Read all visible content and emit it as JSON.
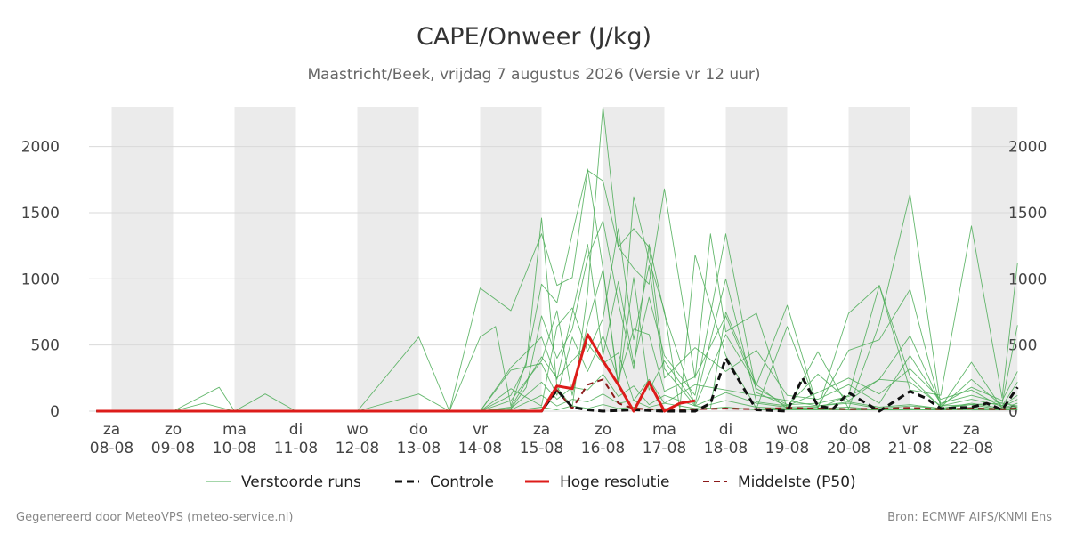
{
  "chart_data": {
    "type": "line",
    "title": "CAPE/Onweer (J/kg)",
    "subtitle": "Maastricht/Beek, vrijdag  7 augustus 2026 (Versie vr 12 uur)",
    "ylim": [
      0,
      2300
    ],
    "yticks": [
      0,
      500,
      1000,
      1500,
      2000
    ],
    "xlim": [
      0,
      14.75
    ],
    "xlabel": "",
    "ylabel": "",
    "grid": true,
    "legend_position": "bottom",
    "x_axis": {
      "day_names": [
        "za",
        "zo",
        "ma",
        "di",
        "wo",
        "do",
        "vr",
        "za",
        "zo",
        "ma",
        "di",
        "wo",
        "do",
        "vr",
        "za"
      ],
      "dates": [
        "08-08",
        "09-08",
        "10-08",
        "11-08",
        "12-08",
        "13-08",
        "14-08",
        "15-08",
        "16-08",
        "17-08",
        "18-08",
        "19-08",
        "20-08",
        "21-08",
        "22-08"
      ]
    },
    "weekend_shading": [
      [
        0,
        1
      ],
      [
        2,
        3
      ],
      [
        4,
        5
      ],
      [
        6,
        7
      ],
      [
        8,
        9
      ],
      [
        10,
        11
      ],
      [
        12,
        13
      ],
      [
        14,
        14.75
      ]
    ],
    "colors": {
      "ensemble": "#4aac55",
      "control": "#111111",
      "high_res": "#dd1c1a",
      "median": "#8b1a1a",
      "grid": "#d9d9d9",
      "shade": "#ebebeb"
    },
    "legend": {
      "ensemble": "Verstoorde runs",
      "control": "Controle",
      "high_res": "Hoge resolutie",
      "median": "Middelste (P50)"
    },
    "series": [
      {
        "name": "Controle",
        "x": [
          -0.25,
          0.5,
          1,
          2,
          3,
          4,
          5,
          6,
          6.5,
          7,
          7.25,
          7.5,
          7.75,
          8,
          8.5,
          9,
          9.5,
          9.75,
          10,
          10.5,
          11,
          11.25,
          11.5,
          11.75,
          12,
          12.5,
          13,
          13.25,
          13.5,
          14,
          14.25,
          14.5,
          14.75
        ],
        "values": [
          0,
          0,
          0,
          0,
          0,
          0,
          0,
          0,
          0,
          0,
          160,
          30,
          10,
          0,
          10,
          0,
          0,
          60,
          400,
          10,
          0,
          250,
          40,
          20,
          140,
          0,
          150,
          100,
          20,
          30,
          60,
          10,
          180
        ]
      },
      {
        "name": "Hoge resolutie",
        "x": [
          -0.25,
          0.5,
          1,
          2,
          3,
          4,
          5,
          6,
          6.5,
          7,
          7.25,
          7.5,
          7.75,
          8,
          8.25,
          8.5,
          8.75,
          9,
          9.25,
          9.5
        ],
        "values": [
          0,
          0,
          0,
          0,
          0,
          0,
          0,
          0,
          0,
          0,
          190,
          170,
          580,
          380,
          200,
          0,
          220,
          0,
          60,
          80
        ]
      },
      {
        "name": "Middelste (P50)",
        "x": [
          -0.25,
          0.5,
          1,
          2,
          3,
          4,
          5,
          6,
          6.5,
          7,
          7.25,
          7.5,
          7.75,
          8,
          8.25,
          8.5,
          8.75,
          9,
          9.5,
          10,
          10.5,
          11,
          11.5,
          12,
          12.5,
          13,
          13.5,
          14,
          14.5,
          14.75
        ],
        "values": [
          0,
          0,
          0,
          0,
          0,
          0,
          0,
          0,
          0,
          0,
          160,
          20,
          200,
          240,
          60,
          20,
          15,
          10,
          15,
          20,
          15,
          25,
          20,
          15,
          20,
          25,
          15,
          20,
          15,
          20
        ]
      }
    ],
    "ensemble_runs": [
      {
        "x": [
          -0.25,
          1,
          2,
          3,
          4,
          5,
          6,
          6.5,
          6.75,
          7,
          7.25,
          7.5,
          7.75,
          8,
          8.25,
          8.5,
          8.75,
          9,
          9.25,
          9.5,
          9.75,
          10,
          10.5,
          11,
          11.5,
          12,
          12.5,
          13,
          13.5,
          14,
          14.5,
          14.75
        ],
        "values": [
          0,
          0,
          0,
          0,
          0,
          0,
          0,
          120,
          350,
          1460,
          180,
          30,
          900,
          2300,
          1240,
          1380,
          1240,
          320,
          180,
          40,
          20,
          750,
          200,
          800,
          20,
          120,
          950,
          160,
          120,
          1400,
          100,
          1120
        ]
      },
      {
        "x": [
          -0.25,
          1,
          1.75,
          2,
          3,
          4,
          5,
          5.5,
          6,
          6.5,
          7,
          7.25,
          7.5,
          7.75,
          8,
          8.25,
          8.5,
          8.75,
          9,
          9.5,
          9.75,
          10,
          10.5,
          11,
          11.5,
          12,
          12.5,
          13,
          13.5,
          14,
          14.5,
          14.75
        ],
        "values": [
          0,
          0,
          180,
          0,
          0,
          0,
          560,
          0,
          930,
          760,
          1340,
          950,
          1010,
          1820,
          1740,
          1240,
          1080,
          960,
          1680,
          250,
          1340,
          600,
          740,
          20,
          450,
          20,
          660,
          1640,
          40,
          50,
          60,
          650
        ]
      },
      {
        "x": [
          -0.25,
          1,
          2,
          3,
          4,
          5,
          5.5,
          6,
          6.25,
          6.5,
          6.75,
          7,
          7.25,
          7.5,
          7.75,
          8,
          8.25,
          8.5,
          8.75,
          9,
          9.25,
          9.5,
          10,
          10.5,
          11,
          11.5,
          12,
          12.5,
          13,
          13.5,
          14,
          14.5,
          14.75
        ],
        "values": [
          0,
          0,
          0,
          0,
          0,
          130,
          0,
          560,
          640,
          40,
          370,
          960,
          820,
          1340,
          1830,
          1080,
          200,
          1620,
          1140,
          760,
          20,
          1180,
          420,
          20,
          640,
          20,
          740,
          950,
          260,
          30,
          370,
          20,
          60
        ]
      },
      {
        "x": [
          -0.25,
          1,
          2,
          3,
          4,
          5,
          6,
          6.5,
          6.75,
          7,
          7.25,
          7.5,
          7.75,
          8,
          8.25,
          8.5,
          8.75,
          9,
          9.5,
          10,
          10.5,
          11,
          11.5,
          12,
          12.5,
          13,
          13.5,
          14,
          14.5,
          14.75
        ],
        "values": [
          0,
          0,
          0,
          0,
          0,
          0,
          0,
          20,
          180,
          720,
          400,
          620,
          1160,
          1440,
          820,
          320,
          1260,
          740,
          40,
          580,
          200,
          20,
          30,
          460,
          540,
          920,
          30,
          240,
          40,
          220
        ]
      },
      {
        "x": [
          -0.25,
          1,
          1.5,
          2,
          2.5,
          3,
          4,
          5,
          6,
          6.5,
          7,
          7.25,
          7.5,
          7.75,
          8,
          8.25,
          8.5,
          8.75,
          9,
          9.5,
          10,
          10.5,
          11,
          11.5,
          12,
          12.5,
          13,
          13.5,
          14,
          14.5,
          14.75
        ],
        "values": [
          0,
          0,
          60,
          0,
          130,
          0,
          0,
          0,
          0,
          330,
          560,
          240,
          740,
          1260,
          420,
          980,
          360,
          860,
          420,
          120,
          1340,
          140,
          40,
          280,
          80,
          240,
          570,
          50,
          180,
          80,
          300
        ]
      },
      {
        "x": [
          -0.25,
          1,
          2,
          3,
          4,
          5,
          6,
          6.5,
          7,
          7.25,
          7.5,
          7.75,
          8,
          8.25,
          8.5,
          8.75,
          9,
          9.5,
          10,
          10.5,
          11,
          11.5,
          12,
          12.5,
          13,
          13.5,
          14,
          14.5,
          14.75
        ],
        "values": [
          0,
          0,
          0,
          0,
          0,
          0,
          0,
          80,
          380,
          760,
          120,
          660,
          1070,
          180,
          1010,
          160,
          380,
          60,
          1000,
          70,
          40,
          140,
          250,
          130,
          320,
          90,
          160,
          30,
          90
        ]
      },
      {
        "x": [
          -0.25,
          1,
          2,
          3,
          4,
          5,
          6,
          6.5,
          7,
          7.25,
          7.5,
          7.75,
          8,
          8.25,
          8.5,
          8.75,
          9,
          9.5,
          10,
          10.5,
          11,
          11.5,
          12,
          12.5,
          13,
          13.5,
          14,
          14.5,
          14.75
        ],
        "values": [
          0,
          0,
          0,
          0,
          0,
          0,
          0,
          170,
          40,
          640,
          780,
          450,
          700,
          1380,
          540,
          1100,
          250,
          480,
          300,
          460,
          120,
          90,
          200,
          60,
          420,
          60,
          120,
          60,
          40
        ]
      },
      {
        "x": [
          -0.25,
          1,
          2,
          3,
          4,
          5,
          6,
          6.5,
          7,
          7.25,
          7.5,
          7.75,
          8,
          8.25,
          8.5,
          8.75,
          9,
          9.5,
          10,
          10.5,
          11,
          11.5,
          12,
          12.5,
          13,
          13.5,
          14,
          14.5,
          14.75
        ],
        "values": [
          0,
          0,
          0,
          0,
          0,
          0,
          0,
          310,
          360,
          120,
          560,
          300,
          570,
          240,
          620,
          580,
          150,
          260,
          720,
          170,
          50,
          60,
          110,
          240,
          220,
          40,
          90,
          40,
          120
        ]
      },
      {
        "x": [
          -0.25,
          1,
          2,
          3,
          4,
          5,
          6,
          6.5,
          7,
          7.25,
          7.5,
          7.75,
          8,
          8.25,
          8.5,
          8.75,
          9,
          9.5,
          10,
          10.5,
          11,
          11.5,
          12,
          12.5,
          13,
          13.5,
          14,
          14.5,
          14.75
        ],
        "values": [
          0,
          0,
          0,
          0,
          0,
          0,
          0,
          30,
          410,
          250,
          380,
          510,
          360,
          440,
          80,
          240,
          60,
          200,
          160,
          120,
          80,
          40,
          70,
          30,
          50,
          20,
          60,
          20,
          40
        ]
      },
      {
        "x": [
          -0.25,
          1,
          2,
          3,
          4,
          5,
          6,
          6.5,
          7,
          7.25,
          7.5,
          7.75,
          8,
          8.25,
          8.5,
          8.75,
          9,
          9.5,
          10,
          10.5,
          11,
          11.5,
          12,
          12.5,
          13,
          13.5,
          14,
          14.5,
          14.75
        ],
        "values": [
          0,
          0,
          0,
          0,
          0,
          0,
          0,
          20,
          220,
          90,
          180,
          160,
          280,
          110,
          190,
          50,
          120,
          40,
          140,
          60,
          30,
          40,
          60,
          20,
          40,
          20,
          50,
          10,
          30
        ]
      },
      {
        "x": [
          -0.25,
          1,
          2,
          3,
          4,
          5,
          6,
          6.5,
          7,
          7.25,
          7.5,
          7.75,
          8,
          8.25,
          8.5,
          8.75,
          9,
          9.5,
          10,
          10.5,
          11,
          11.5,
          12,
          12.5,
          13,
          13.5,
          14,
          14.5,
          14.75
        ],
        "values": [
          0,
          0,
          0,
          0,
          0,
          0,
          0,
          10,
          120,
          40,
          90,
          70,
          130,
          60,
          80,
          30,
          60,
          20,
          80,
          30,
          20,
          20,
          30,
          10,
          20,
          10,
          30,
          10,
          20
        ]
      },
      {
        "x": [
          -0.25,
          1,
          2,
          3,
          4,
          5,
          6,
          6.5,
          7,
          7.25,
          7.5,
          7.75,
          8,
          8.25,
          8.5,
          8.75,
          9,
          9.5,
          10,
          10.5,
          11,
          11.5,
          12,
          12.5,
          13,
          13.5,
          14,
          14.5,
          14.75
        ],
        "values": [
          0,
          0,
          0,
          0,
          0,
          0,
          0,
          0,
          30,
          10,
          40,
          20,
          50,
          20,
          30,
          10,
          20,
          10,
          30,
          10,
          10,
          10,
          10,
          10,
          10,
          10,
          10,
          10,
          10
        ]
      }
    ]
  },
  "footer": {
    "left": "Gegenereerd door MeteoVPS (meteo-service.nl)",
    "right": "Bron: ECMWF AIFS/KNMI Ens"
  }
}
